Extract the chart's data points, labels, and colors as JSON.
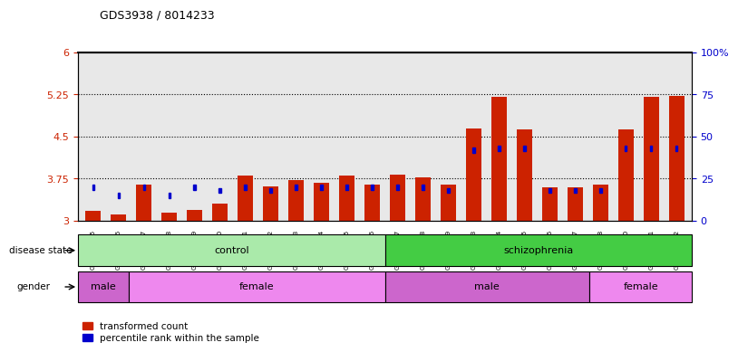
{
  "title": "GDS3938 / 8014233",
  "samples": [
    "GSM630785",
    "GSM630786",
    "GSM630787",
    "GSM630788",
    "GSM630789",
    "GSM630790",
    "GSM630791",
    "GSM630792",
    "GSM630793",
    "GSM630794",
    "GSM630795",
    "GSM630796",
    "GSM630797",
    "GSM630798",
    "GSM630799",
    "GSM630803",
    "GSM630804",
    "GSM630805",
    "GSM630806",
    "GSM630807",
    "GSM630808",
    "GSM630800",
    "GSM630801",
    "GSM630802"
  ],
  "red_values": [
    3.18,
    3.12,
    3.65,
    3.14,
    3.2,
    3.3,
    3.8,
    3.62,
    3.72,
    3.68,
    3.8,
    3.65,
    3.82,
    3.78,
    3.65,
    4.65,
    5.2,
    4.62,
    3.6,
    3.6,
    3.65,
    4.62,
    5.2,
    5.22
  ],
  "blue_values": [
    20,
    15,
    20,
    15,
    20,
    18,
    20,
    18,
    20,
    20,
    20,
    20,
    20,
    20,
    18,
    42,
    43,
    43,
    18,
    18,
    18,
    43,
    43,
    43
  ],
  "ylim_left": [
    3.0,
    6.0
  ],
  "ylim_right": [
    0,
    100
  ],
  "yticks_left": [
    3.0,
    3.75,
    4.5,
    5.25,
    6.0
  ],
  "ytick_labels_left": [
    "3",
    "3.75",
    "4.5",
    "5.25",
    "6"
  ],
  "yticks_right": [
    0,
    25,
    50,
    75,
    100
  ],
  "ytick_labels_right": [
    "0",
    "25",
    "50",
    "75",
    "100%"
  ],
  "hlines": [
    3.75,
    4.5,
    5.25
  ],
  "bar_color": "#cc2200",
  "blue_color": "#0000cc",
  "bar_width": 0.6,
  "disease_groups": [
    {
      "label": "control",
      "start": 0,
      "end": 11,
      "color": "#aaeaaa"
    },
    {
      "label": "schizophrenia",
      "start": 12,
      "end": 23,
      "color": "#44cc44"
    }
  ],
  "gender_groups": [
    {
      "label": "male",
      "start": 0,
      "end": 1,
      "color": "#cc66cc"
    },
    {
      "label": "female",
      "start": 2,
      "end": 11,
      "color": "#ee88ee"
    },
    {
      "label": "male",
      "start": 12,
      "end": 19,
      "color": "#cc66cc"
    },
    {
      "label": "female",
      "start": 20,
      "end": 23,
      "color": "#ee88ee"
    }
  ],
  "legend_items": [
    {
      "label": "transformed count",
      "color": "#cc2200"
    },
    {
      "label": "percentile rank within the sample",
      "color": "#0000cc"
    }
  ],
  "bg_color": "#ffffff",
  "ax_bg_color": "#e8e8e8"
}
